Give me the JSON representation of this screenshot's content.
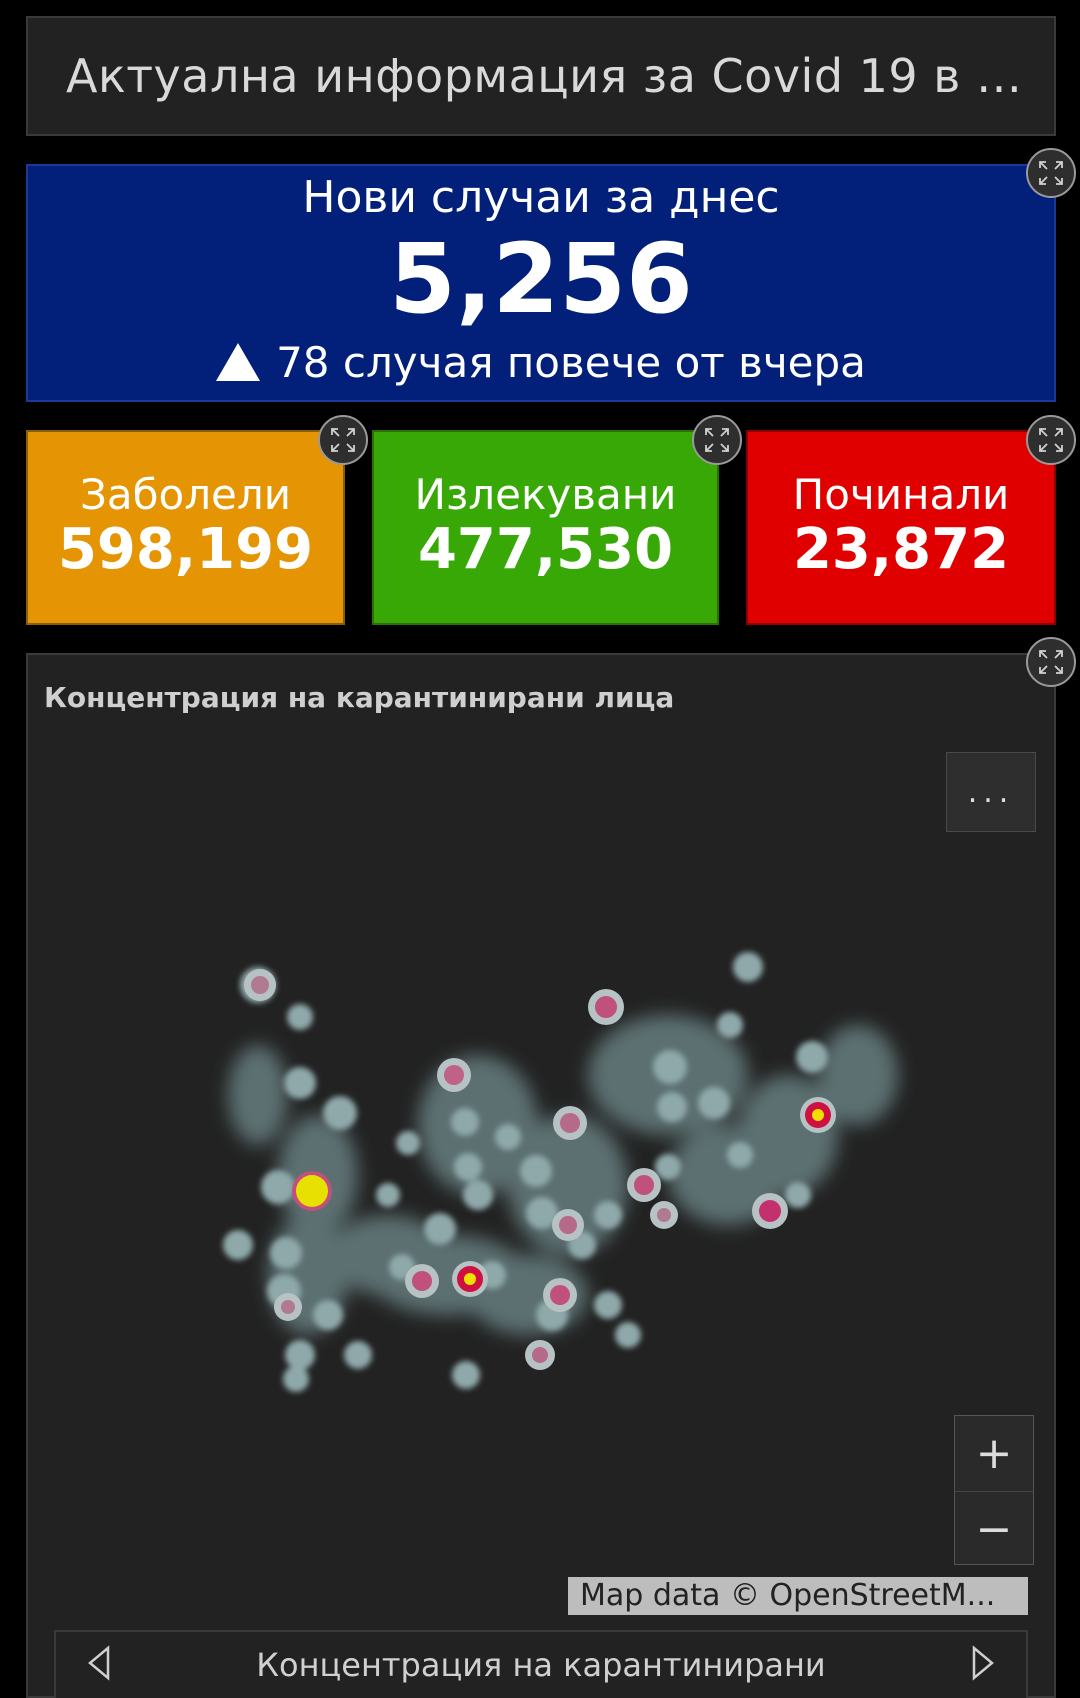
{
  "header": {
    "title": "Актуална информация за Covid 19 в Б..."
  },
  "new_cases": {
    "label": "Нови случаи за днес",
    "value": "5,256",
    "trend_text": "78 случая повече от вчера",
    "trend_icon": "up-triangle-icon"
  },
  "stats": {
    "infected": {
      "label": "Заболели",
      "value": "598,199",
      "color": "#e59504"
    },
    "recovered": {
      "label": "Излекувани",
      "value": "477,530",
      "color": "#37a805"
    },
    "deceased": {
      "label": "Починали",
      "value": "23,872",
      "color": "#e00000"
    }
  },
  "map": {
    "title": "Концентрация на карантинирани лица",
    "more_label": "...",
    "zoom_in_label": "+",
    "zoom_out_label": "−",
    "attribution": "Map data © OpenStreetM..."
  },
  "nav": {
    "label": "Концентрация на карантинирани",
    "prev_icon": "chevron-left-icon",
    "next_icon": "chevron-right-icon"
  },
  "icons": {
    "expand": "expand-icon"
  },
  "colors": {
    "background": "#000000",
    "panel": "#222222",
    "new_cases_bg": "#02207a",
    "heat_low": "#7f9a9c",
    "heat_mid": "#d0507a",
    "heat_high": "#e8e000"
  }
}
